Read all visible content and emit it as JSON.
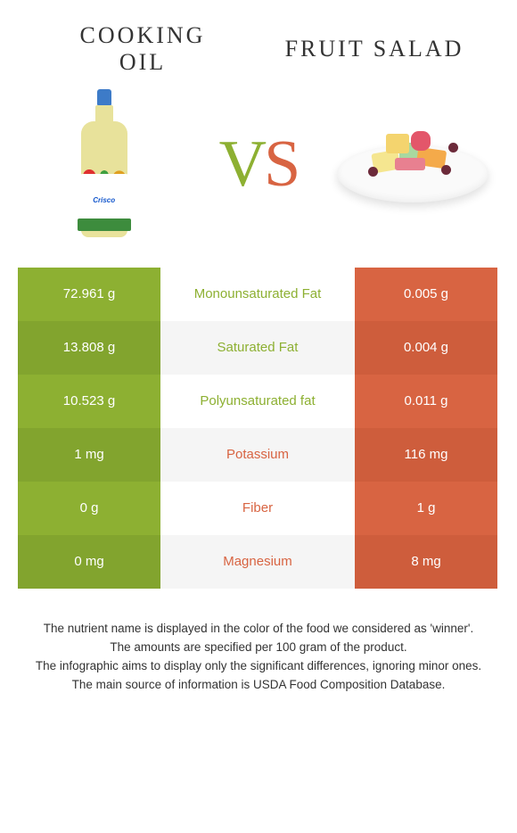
{
  "header": {
    "left_title_l1": "COOKING",
    "left_title_l2": "OIL",
    "right_title": "FRUIT SALAD",
    "vs_v": "V",
    "vs_s": "S",
    "bottle_label": "Crisco"
  },
  "colors": {
    "green": "#8db032",
    "green_dark": "#82a42e",
    "orange": "#d86442",
    "orange_dark": "#ce5d3c"
  },
  "rows": [
    {
      "left": "72.961 g",
      "label": "Monounsaturated Fat",
      "right": "0.005 g",
      "winner": "green"
    },
    {
      "left": "13.808 g",
      "label": "Saturated Fat",
      "right": "0.004 g",
      "winner": "green"
    },
    {
      "left": "10.523 g",
      "label": "Polyunsaturated fat",
      "right": "0.011 g",
      "winner": "green"
    },
    {
      "left": "1 mg",
      "label": "Potassium",
      "right": "116 mg",
      "winner": "orange"
    },
    {
      "left": "0 g",
      "label": "Fiber",
      "right": "1 g",
      "winner": "orange"
    },
    {
      "left": "0 mg",
      "label": "Magnesium",
      "right": "8 mg",
      "winner": "orange"
    }
  ],
  "footer": {
    "l1": "The nutrient name is displayed in the color of the food we considered as 'winner'.",
    "l2": "The amounts are specified per 100 gram of the product.",
    "l3": "The infographic aims to display only the significant differences, ignoring minor ones.",
    "l4": "The main source of information is USDA Food Composition Database."
  }
}
